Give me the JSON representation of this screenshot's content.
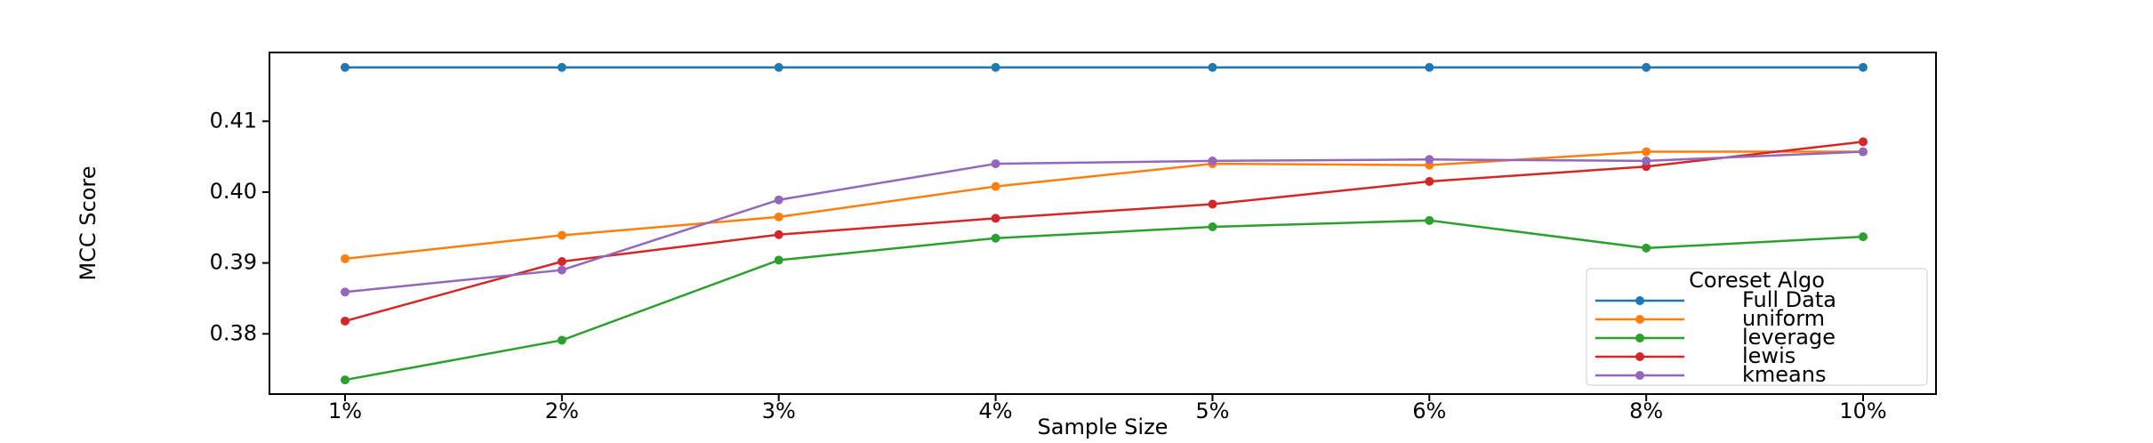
{
  "chart_data": {
    "type": "line",
    "x_label": "Sample Size",
    "y_label": "MCC Score",
    "categories": [
      "1%",
      "2%",
      "3%",
      "4%",
      "5%",
      "6%",
      "8%",
      "10%"
    ],
    "series": [
      {
        "name": "Full Data",
        "color": "#1f77b4",
        "values": [
          0.4176,
          0.4176,
          0.4176,
          0.4176,
          0.4176,
          0.4176,
          0.4176,
          0.4176
        ]
      },
      {
        "name": "uniform",
        "color": "#ff7f0e",
        "values": [
          0.3906,
          0.3939,
          0.3965,
          0.4008,
          0.404,
          0.4038,
          0.4057,
          0.4057
        ]
      },
      {
        "name": "leverage",
        "color": "#2ca02c",
        "values": [
          0.3735,
          0.3791,
          0.3904,
          0.3935,
          0.3951,
          0.396,
          0.3921,
          0.3937
        ]
      },
      {
        "name": "lewis",
        "color": "#d62728",
        "values": [
          0.3818,
          0.3902,
          0.394,
          0.3963,
          0.3983,
          0.4015,
          0.4036,
          0.4071
        ]
      },
      {
        "name": "kmeans",
        "color": "#9467bd",
        "values": [
          0.3859,
          0.389,
          0.3989,
          0.404,
          0.4044,
          0.4046,
          0.4044,
          0.4057
        ]
      }
    ],
    "ylim": [
      0.3715,
      0.4197
    ],
    "yticks": [
      {
        "value": 0.38,
        "label": "0.38"
      },
      {
        "value": 0.39,
        "label": "0.39"
      },
      {
        "value": 0.4,
        "label": "0.40"
      },
      {
        "value": 0.41,
        "label": "0.41"
      }
    ],
    "legend_title": "Coreset Algo",
    "legend_position": "lower right",
    "grid": false
  }
}
